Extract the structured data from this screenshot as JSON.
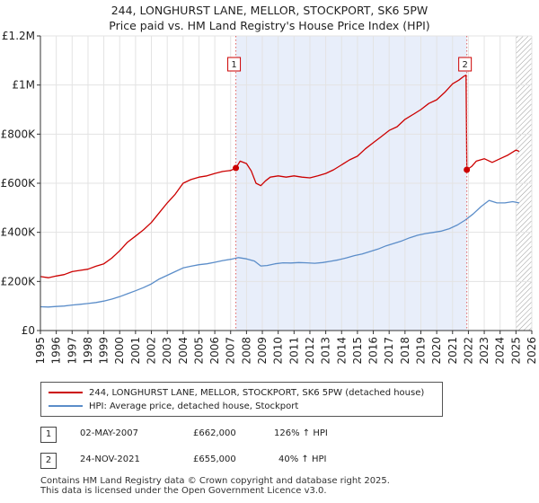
{
  "chart_data": {
    "type": "line",
    "title": "244, LONGHURST LANE, MELLOR, STOCKPORT, SK6 5PW",
    "subtitle": "Price paid vs. HM Land Registry's House Price Index (HPI)",
    "y_ticks": [
      "£0",
      "£200K",
      "£400K",
      "£600K",
      "£800K",
      "£1M",
      "£1.2M"
    ],
    "y_tick_values": [
      0,
      200000,
      400000,
      600000,
      800000,
      1000000,
      1200000
    ],
    "ylim": [
      0,
      1200000
    ],
    "xlim": [
      1995,
      2026
    ],
    "x_ticks": [
      "1995",
      "1996",
      "1997",
      "1998",
      "1999",
      "2000",
      "2001",
      "2002",
      "2003",
      "2004",
      "2005",
      "2006",
      "2007",
      "2008",
      "2009",
      "2010",
      "2011",
      "2012",
      "2013",
      "2014",
      "2015",
      "2016",
      "2017",
      "2018",
      "2019",
      "2020",
      "2021",
      "2022",
      "2023",
      "2024",
      "2025",
      "2026"
    ],
    "grid": true,
    "shaded_range": [
      2007.33,
      2021.9
    ],
    "hatched_from": 2025.0,
    "series": [
      {
        "name": "244, LONGHURST LANE, MELLOR, STOCKPORT, SK6 5PW (detached house)",
        "color": "#cc0000",
        "x": [
          1995.0,
          1995.5,
          1996.0,
          1996.5,
          1997.0,
          1997.5,
          1998.0,
          1998.5,
          1999.0,
          1999.5,
          2000.0,
          2000.5,
          2001.0,
          2001.5,
          2002.0,
          2002.5,
          2003.0,
          2003.5,
          2004.0,
          2004.5,
          2005.0,
          2005.5,
          2006.0,
          2006.5,
          2007.0,
          2007.33,
          2007.6,
          2008.0,
          2008.3,
          2008.6,
          2008.9,
          2009.2,
          2009.5,
          2010.0,
          2010.5,
          2011.0,
          2011.5,
          2012.0,
          2012.5,
          2013.0,
          2013.5,
          2014.0,
          2014.5,
          2015.0,
          2015.5,
          2016.0,
          2016.5,
          2017.0,
          2017.5,
          2018.0,
          2018.5,
          2019.0,
          2019.5,
          2020.0,
          2020.5,
          2021.0,
          2021.4,
          2021.7,
          2021.85,
          2021.9,
          2022.2,
          2022.5,
          2023.0,
          2023.5,
          2024.0,
          2024.5,
          2025.0,
          2025.2
        ],
        "values": [
          220000,
          215000,
          222000,
          228000,
          240000,
          245000,
          250000,
          262000,
          272000,
          295000,
          325000,
          360000,
          385000,
          410000,
          440000,
          480000,
          520000,
          555000,
          600000,
          615000,
          625000,
          630000,
          640000,
          648000,
          652000,
          662000,
          690000,
          680000,
          650000,
          600000,
          590000,
          610000,
          625000,
          630000,
          625000,
          630000,
          625000,
          622000,
          630000,
          640000,
          655000,
          675000,
          695000,
          710000,
          740000,
          765000,
          790000,
          815000,
          830000,
          860000,
          880000,
          900000,
          925000,
          940000,
          970000,
          1005000,
          1020000,
          1035000,
          1040000,
          655000,
          668000,
          690000,
          700000,
          685000,
          700000,
          715000,
          735000,
          730000
        ]
      },
      {
        "name": "HPI: Average price, detached house, Stockport",
        "color": "#5b8dc9",
        "x": [
          1995.0,
          1995.5,
          1996.0,
          1996.5,
          1997.0,
          1997.5,
          1998.0,
          1998.5,
          1999.0,
          1999.5,
          2000.0,
          2000.5,
          2001.0,
          2001.5,
          2002.0,
          2002.5,
          2003.0,
          2003.5,
          2004.0,
          2004.5,
          2005.0,
          2005.5,
          2006.0,
          2006.5,
          2007.0,
          2007.5,
          2008.0,
          2008.5,
          2008.9,
          2009.3,
          2009.8,
          2010.3,
          2010.8,
          2011.3,
          2011.8,
          2012.3,
          2012.8,
          2013.3,
          2013.8,
          2014.3,
          2014.8,
          2015.3,
          2015.8,
          2016.3,
          2016.8,
          2017.3,
          2017.8,
          2018.3,
          2018.8,
          2019.3,
          2019.8,
          2020.3,
          2020.8,
          2021.3,
          2021.8,
          2022.3,
          2022.8,
          2023.3,
          2023.8,
          2024.3,
          2024.8,
          2025.2
        ],
        "values": [
          97000,
          96000,
          98000,
          100000,
          104000,
          107000,
          110000,
          114000,
          120000,
          128000,
          138000,
          150000,
          162000,
          175000,
          190000,
          210000,
          225000,
          240000,
          255000,
          262000,
          268000,
          272000,
          278000,
          285000,
          290000,
          297000,
          292000,
          283000,
          263000,
          265000,
          272000,
          276000,
          275000,
          277000,
          276000,
          274000,
          277000,
          282000,
          288000,
          296000,
          305000,
          312000,
          322000,
          332000,
          345000,
          355000,
          365000,
          378000,
          388000,
          395000,
          400000,
          405000,
          415000,
          430000,
          450000,
          475000,
          505000,
          530000,
          520000,
          520000,
          525000,
          520000
        ]
      }
    ],
    "transactions": [
      {
        "id": "1",
        "x": 2007.33,
        "value": 662000
      },
      {
        "id": "2",
        "x": 2021.9,
        "value": 655000
      }
    ]
  },
  "legend": {
    "property_label": "244, LONGHURST LANE, MELLOR, STOCKPORT, SK6 5PW (detached house)",
    "hpi_label": "HPI: Average price, detached house, Stockport"
  },
  "table": [
    {
      "id": "1",
      "date": "02-MAY-2007",
      "price": "£662,000",
      "hpi": "126% ↑ HPI"
    },
    {
      "id": "2",
      "date": "24-NOV-2021",
      "price": "£655,000",
      "hpi": "40% ↑ HPI"
    }
  ],
  "footer": {
    "line1": "Contains HM Land Registry data © Crown copyright and database right 2025.",
    "line2": "This data is licensed under the Open Government Licence v3.0."
  }
}
